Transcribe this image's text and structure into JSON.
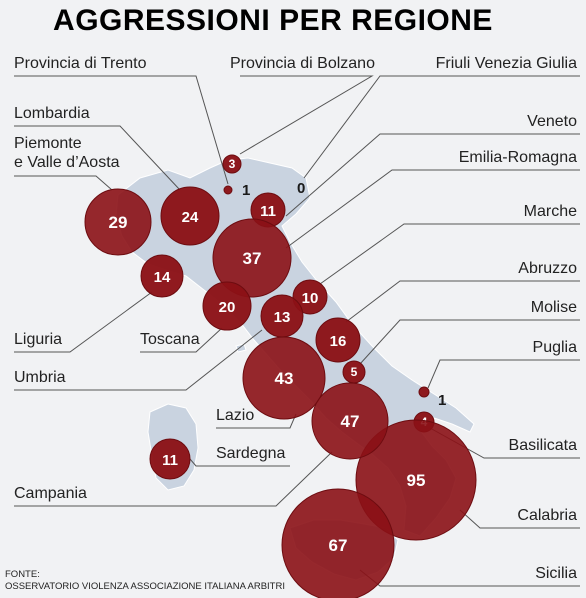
{
  "title": "AGGRESSIONI PER REGIONE",
  "source": {
    "label": "FONTE:",
    "text": "OSSERVATORIO VIOLENZA ASSOCIAZIONE ITALIANA ARBITRI"
  },
  "colors": {
    "bubble": "#8b1116",
    "bubble_edge": "#6d0c10",
    "land": "#c9d3e0",
    "land_edge": "#ffffff",
    "leader": "#555555",
    "background": "#f1f2f4"
  },
  "regions": [
    {
      "id": "provincia-di-trento",
      "name": "Provincia di Trento",
      "value": 1
    },
    {
      "id": "provincia-di-bolzano",
      "name": "Provincia di Bolzano",
      "value": 3
    },
    {
      "id": "friuli-venezia-giulia",
      "name": "Friuli Venezia Giulia",
      "value": 0
    },
    {
      "id": "lombardia",
      "name": "Lombardia",
      "value": 24
    },
    {
      "id": "piemonte-e-valle-d-aosta",
      "name": "Piemonte\ne Valle d’Aosta",
      "value": 29
    },
    {
      "id": "veneto",
      "name": "Veneto",
      "value": 11
    },
    {
      "id": "emilia-romagna",
      "name": "Emilia-Romagna",
      "value": 37
    },
    {
      "id": "marche",
      "name": "Marche",
      "value": 10
    },
    {
      "id": "abruzzo",
      "name": "Abruzzo",
      "value": 16
    },
    {
      "id": "molise",
      "name": "Molise",
      "value": 5
    },
    {
      "id": "puglia",
      "name": "Puglia",
      "value": 1
    },
    {
      "id": "basilicata",
      "name": "Basilicata",
      "value": 4
    },
    {
      "id": "calabria",
      "name": "Calabria",
      "value": 95
    },
    {
      "id": "sicilia",
      "name": "Sicilia",
      "value": 67
    },
    {
      "id": "liguria",
      "name": "Liguria",
      "value": 14
    },
    {
      "id": "toscana",
      "name": "Toscana",
      "value": 20
    },
    {
      "id": "umbria",
      "name": "Umbria",
      "value": 13
    },
    {
      "id": "lazio",
      "name": "Lazio",
      "value": 43
    },
    {
      "id": "sardegna",
      "name": "Sardegna",
      "value": 11
    },
    {
      "id": "campania",
      "name": "Campania",
      "value": 47
    }
  ]
}
